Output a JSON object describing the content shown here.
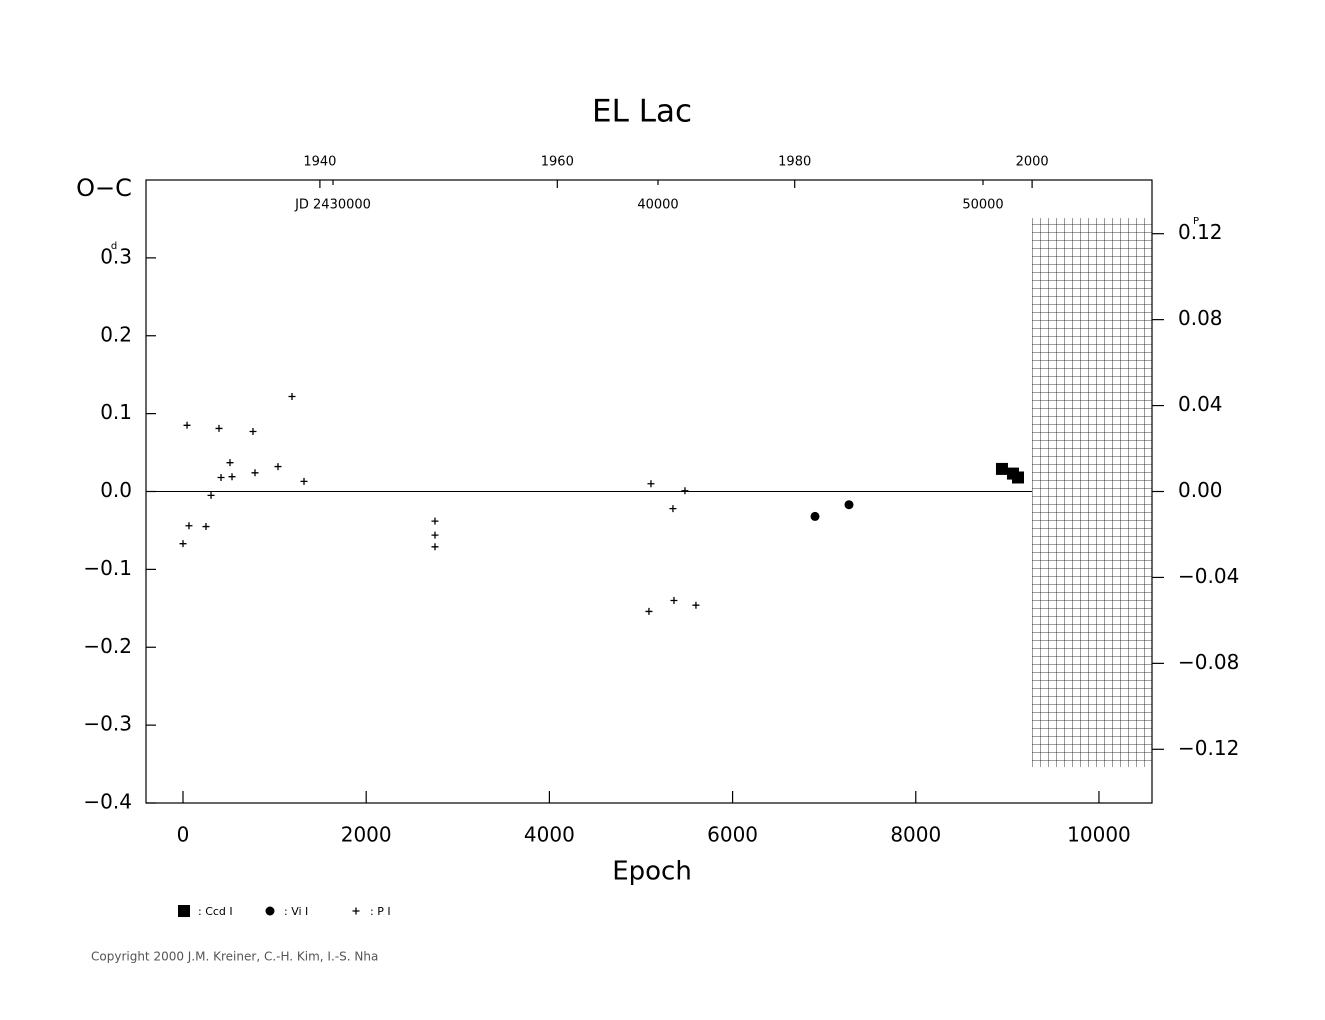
{
  "chart_data": {
    "type": "scatter",
    "title": "EL Lac",
    "xlabel": "Epoch",
    "ylabel": "O−C",
    "yunit": "d",
    "y2unit": "P",
    "xlim": [
      -404,
      10579
    ],
    "xticks": [
      0,
      2000,
      4000,
      6000,
      8000,
      10000
    ],
    "ylim": [
      -0.4,
      0.4
    ],
    "yticks": [
      {
        "value": -0.4,
        "label": "−0.4"
      },
      {
        "value": -0.3,
        "label": "−0.3"
      },
      {
        "value": -0.2,
        "label": "−0.2"
      },
      {
        "value": -0.1,
        "label": "−0.1"
      },
      {
        "value": 0,
        "label": "0.0"
      },
      0.1,
      0.2,
      0.3
    ],
    "y2lim": [
      -0.145,
      0.145
    ],
    "y2ticks": [
      {
        "value": -0.12,
        "label": "−0.12"
      },
      {
        "value": -0.08,
        "label": "−0.08"
      },
      {
        "value": -0.04,
        "label": "−0.04"
      },
      {
        "value": 0,
        "label": "0.00"
      },
      0.04,
      0.08,
      0.12
    ],
    "x2lim": [
      1925.35,
      2010.1
    ],
    "x2ticks": [
      1940,
      1960,
      1980,
      2000
    ],
    "jdlim": [
      2424246,
      2455200
    ],
    "jdticks": [
      {
        "value": 2430000,
        "label": "JD 2430000"
      },
      {
        "value": 2440000,
        "label": "40000"
      },
      {
        "value": 2450000,
        "label": "50000"
      }
    ],
    "series": [
      {
        "name": ": Ccd I",
        "marker": "square",
        "color": "#000000",
        "x": [
          8941,
          9061,
          9116
        ],
        "values": [
          0.029,
          0.023,
          0.018
        ]
      },
      {
        "name": ": Vi I",
        "marker": "circle",
        "color": "#000000",
        "x": [
          6900,
          7271
        ],
        "values": [
          -0.032,
          -0.017
        ]
      },
      {
        "name": ": P I",
        "marker": "plus",
        "color": "#000000",
        "x": [
          0,
          65,
          251,
          44,
          306,
          393,
          415,
          513,
          535,
          764,
          786,
          1037,
          1190,
          1321,
          2751,
          2751,
          2751,
          5109,
          5087,
          5349,
          5360,
          5480,
          5600
        ],
        "values": [
          -0.067,
          -0.044,
          -0.045,
          0.085,
          -0.005,
          0.081,
          0.018,
          0.037,
          0.019,
          0.077,
          0.024,
          0.032,
          0.122,
          0.013,
          -0.038,
          -0.056,
          -0.071,
          0.01,
          -0.154,
          -0.022,
          -0.14,
          0.001,
          -0.146
        ]
      }
    ],
    "footer": "Copyright 2000 J.M. Kreiner, C.-H. Kim, I.-S. Nha"
  }
}
